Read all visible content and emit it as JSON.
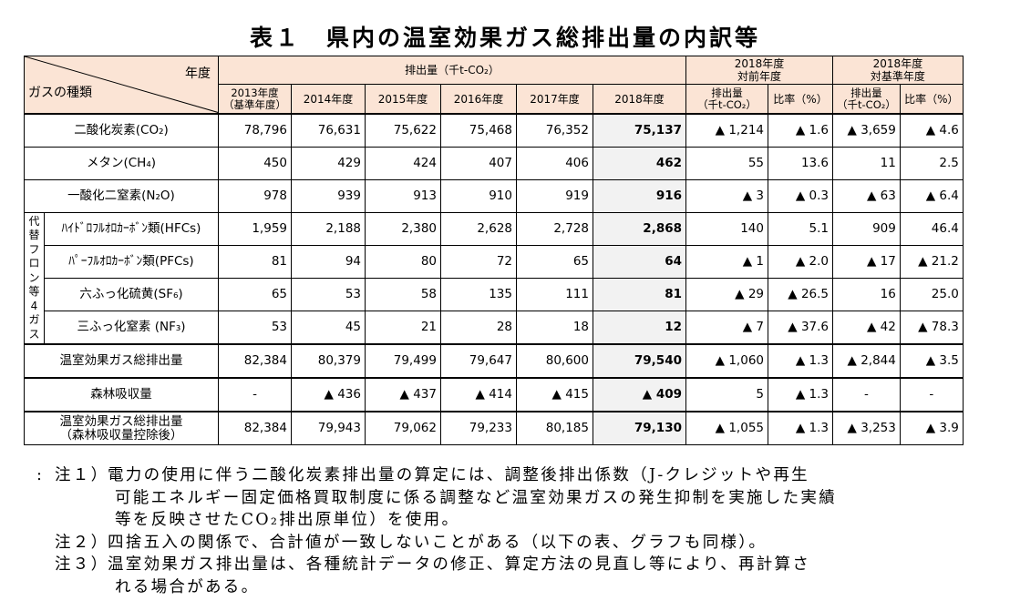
{
  "title": "表１　県内の温室効果ガス総排出量の内訳等",
  "header": {
    "corner_year": "年度",
    "corner_gas": "ガスの種類",
    "emissions_group": "排出量（千t-CO₂）",
    "years": [
      "2013年度",
      "2014年度",
      "2015年度",
      "2016年度",
      "2017年度",
      "2018年度"
    ],
    "base_year_note": "（基準年度）",
    "vs_prev_group_line1": "2018年度",
    "vs_prev_group_line2": "対前年度",
    "vs_base_group_line1": "2018年度",
    "vs_base_group_line2": "対基準年度",
    "amount_line1": "排出量",
    "amount_line2": "（千t-CO₂）",
    "ratio": "比率（%）"
  },
  "alt_group_label": [
    "代",
    "替",
    "フ",
    "ロ",
    "ン",
    "等",
    "4",
    "ガ",
    "ス"
  ],
  "rows": [
    {
      "gas": "二酸化炭素(CO₂)",
      "values": [
        "78,796",
        "76,631",
        "75,622",
        "75,468",
        "76,352",
        "75,137"
      ],
      "prev_amount": "▲ 1,214",
      "prev_ratio": "▲ 1.6",
      "base_amount": "▲ 3,659",
      "base_ratio": "▲ 4.6"
    },
    {
      "gas": "メタン(CH₄)",
      "values": [
        "450",
        "429",
        "424",
        "407",
        "406",
        "462"
      ],
      "prev_amount": "55",
      "prev_ratio": "13.6",
      "base_amount": "11",
      "base_ratio": "2.5"
    },
    {
      "gas": "一酸化二窒素(N₂O)",
      "values": [
        "978",
        "939",
        "913",
        "910",
        "919",
        "916"
      ],
      "prev_amount": "▲ 3",
      "prev_ratio": "▲ 0.3",
      "base_amount": "▲ 63",
      "base_ratio": "▲ 6.4"
    },
    {
      "gas": "ﾊｲﾄﾞﾛﾌﾙｵﾛｶｰﾎﾞﾝ類(HFCs)",
      "values": [
        "1,959",
        "2,188",
        "2,380",
        "2,628",
        "2,728",
        "2,868"
      ],
      "prev_amount": "140",
      "prev_ratio": "5.1",
      "base_amount": "909",
      "base_ratio": "46.4"
    },
    {
      "gas": "ﾊﾟｰﾌﾙｵﾛｶｰﾎﾞﾝ類(PFCs)",
      "values": [
        "81",
        "94",
        "80",
        "72",
        "65",
        "64"
      ],
      "prev_amount": "▲ 1",
      "prev_ratio": "▲ 2.0",
      "base_amount": "▲ 17",
      "base_ratio": "▲ 21.2"
    },
    {
      "gas": "六ふっ化硫黄(SF₆)",
      "values": [
        "65",
        "53",
        "58",
        "135",
        "111",
        "81"
      ],
      "prev_amount": "▲ 29",
      "prev_ratio": "▲ 26.5",
      "base_amount": "16",
      "base_ratio": "25.0"
    },
    {
      "gas": "三ふっ化窒素 (NF₃)",
      "values": [
        "53",
        "45",
        "21",
        "28",
        "18",
        "12"
      ],
      "prev_amount": "▲ 7",
      "prev_ratio": "▲ 37.6",
      "base_amount": "▲ 42",
      "base_ratio": "▲ 78.3"
    },
    {
      "gas": "温室効果ガス総排出量",
      "values": [
        "82,384",
        "80,379",
        "79,499",
        "79,647",
        "80,600",
        "79,540"
      ],
      "prev_amount": "▲ 1,060",
      "prev_ratio": "▲ 1.3",
      "base_amount": "▲ 2,844",
      "base_ratio": "▲ 3.5"
    },
    {
      "gas": "森林吸収量",
      "values": [
        "-",
        "▲ 436",
        "▲ 437",
        "▲ 414",
        "▲ 415",
        "▲ 409"
      ],
      "prev_amount": "5",
      "prev_ratio": "▲ 1.3",
      "base_amount": "-",
      "base_ratio": "-"
    },
    {
      "gas": "温室効果ガス総排出量",
      "gas_line2": "（森林吸収量控除後）",
      "values": [
        "82,384",
        "79,943",
        "79,062",
        "79,233",
        "80,185",
        "79,130"
      ],
      "prev_amount": "▲ 1,055",
      "prev_ratio": "▲ 1.3",
      "base_amount": "▲ 3,253",
      "base_ratio": "▲ 3.9"
    }
  ],
  "notes": {
    "left_mark": ":",
    "items": [
      {
        "label": "注１）",
        "lines": [
          "電力の使用に伴う二酸化炭素排出量の算定には、調整後排出係数（J-クレジットや再生",
          "可能エネルギー固定価格買取制度に係る調整など温室効果ガスの発生抑制を実施した実績",
          "等を反映させたCO₂排出原単位）を使用。"
        ]
      },
      {
        "label": "注２）",
        "lines": [
          "四捨五入の関係で、合計値が一致しないことがある（以下の表、グラフも同様）。"
        ]
      },
      {
        "label": "注３）",
        "lines": [
          "温室効果ガス排出量は、各種統計データの修正、算定方法の見直し等により、再計算さ",
          "れる場合がある。"
        ]
      }
    ]
  }
}
